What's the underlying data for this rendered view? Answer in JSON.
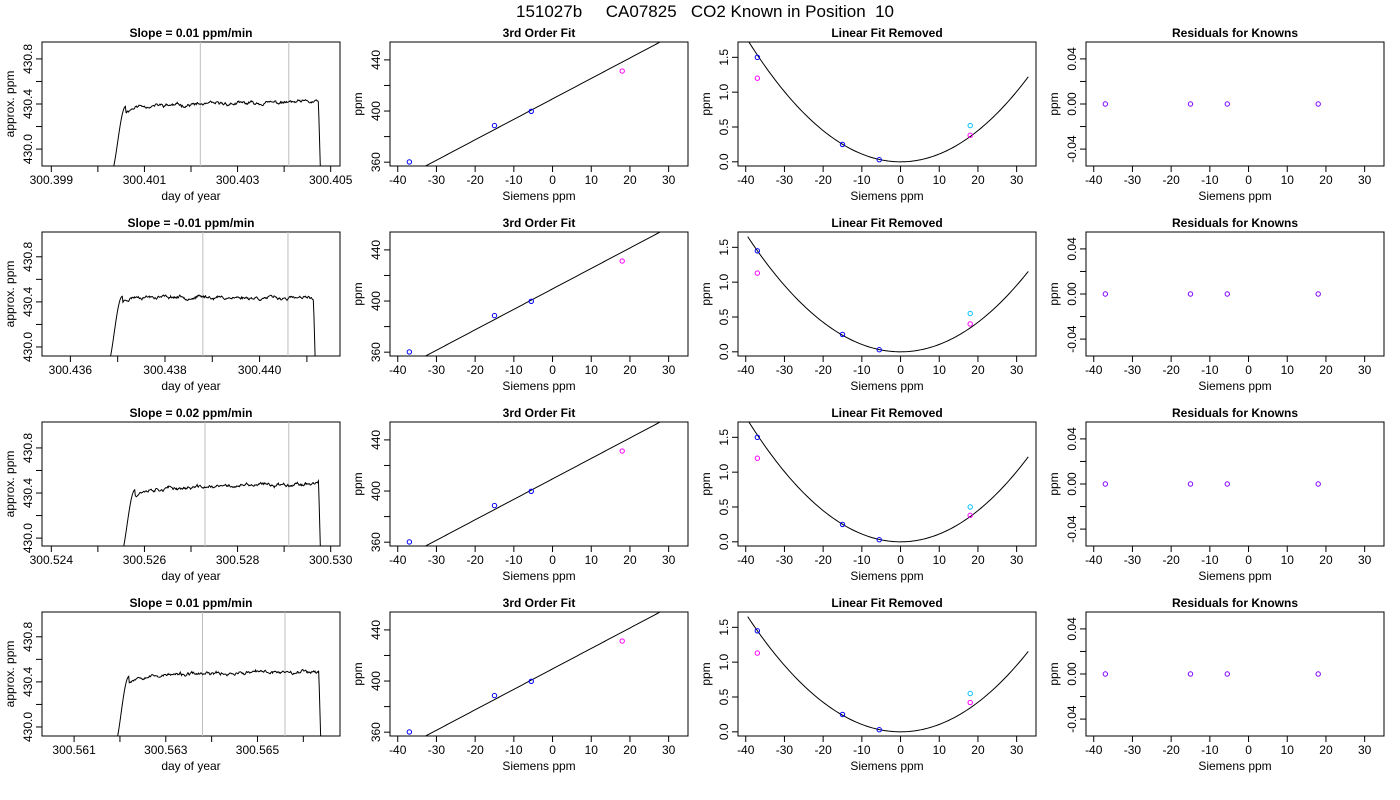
{
  "figure": {
    "title": "151027b     CA07825   CO2 Known in Position  10"
  },
  "colors": {
    "trace": "#000000",
    "frame": "#000000",
    "marker_lines": "#bebebe",
    "points_blue": "#0000ff",
    "points_magenta": "#ff00ff",
    "points_cyan": "#00bfff",
    "points_purple": "#8000ff"
  },
  "chart_data": [
    {
      "type": "line",
      "row": 0,
      "col": 0,
      "title": "Slope =  0.01  ppm/min",
      "xlabel": "day of year",
      "ylabel": "approx. ppm",
      "xlim": [
        300.3988,
        300.4052
      ],
      "ylim": [
        429.85,
        430.95
      ],
      "xticks": [
        300.399,
        300.4,
        300.401,
        300.402,
        300.403,
        300.404,
        300.405
      ],
      "xtick_labels": [
        "300.399",
        "",
        "300.401",
        "",
        "300.403",
        "",
        "300.405"
      ],
      "yticks": [
        430.0,
        430.2,
        430.4,
        430.6,
        430.8
      ],
      "ytick_labels": [
        "430.0",
        "",
        "430.4",
        "",
        "430.8"
      ],
      "vlines": [
        300.4022,
        300.4041
      ],
      "trace": {
        "start": 300.4003,
        "rise_end": 300.4006,
        "end": 300.4048,
        "base": 429.8,
        "plateau": 430.38,
        "drift": 0.04,
        "seed": 11
      }
    },
    {
      "type": "line",
      "row": 1,
      "col": 0,
      "title": "Slope =  -0.01  ppm/min",
      "xlabel": "day of year",
      "ylabel": "approx. ppm",
      "xlim": [
        300.4354,
        300.4417
      ],
      "ylim": [
        429.92,
        431.02
      ],
      "xticks": [
        300.436,
        300.437,
        300.438,
        300.439,
        300.44,
        300.441
      ],
      "xtick_labels": [
        "300.436",
        "",
        "300.438",
        "",
        "300.440",
        ""
      ],
      "yticks": [
        430.0,
        430.2,
        430.4,
        430.6,
        430.8
      ],
      "ytick_labels": [
        "430.0",
        "",
        "430.4",
        "",
        "430.8"
      ],
      "vlines": [
        300.4388,
        300.4406
      ],
      "trace": {
        "start": 300.4368,
        "rise_end": 300.4371,
        "end": 300.4412,
        "base": 429.85,
        "plateau": 430.45,
        "drift": -0.02,
        "seed": 23
      }
    },
    {
      "type": "line",
      "row": 2,
      "col": 0,
      "title": "Slope =  0.02  ppm/min",
      "xlabel": "day of year",
      "ylabel": "approx. ppm",
      "xlim": [
        300.5238,
        300.5302
      ],
      "ylim": [
        429.93,
        431.03
      ],
      "xticks": [
        300.524,
        300.525,
        300.526,
        300.527,
        300.528,
        300.529,
        300.53
      ],
      "xtick_labels": [
        "300.524",
        "",
        "300.526",
        "",
        "300.528",
        "",
        "300.530"
      ],
      "yticks": [
        430.0,
        430.2,
        430.4,
        430.6,
        430.8
      ],
      "ytick_labels": [
        "430.0",
        "",
        "430.4",
        "",
        "430.8"
      ],
      "vlines": [
        300.5273,
        300.5291
      ],
      "trace": {
        "start": 300.5255,
        "rise_end": 300.5258,
        "end": 300.5298,
        "base": 429.85,
        "plateau": 430.43,
        "drift": 0.06,
        "seed": 37
      }
    },
    {
      "type": "line",
      "row": 3,
      "col": 0,
      "title": "Slope =  0.01  ppm/min",
      "xlabel": "day of year",
      "ylabel": "approx. ppm",
      "xlim": [
        300.5603,
        300.5668
      ],
      "ylim": [
        429.92,
        431.02
      ],
      "xticks": [
        300.561,
        300.562,
        300.563,
        300.564,
        300.565,
        300.566
      ],
      "xtick_labels": [
        "300.561",
        "",
        "300.563",
        "",
        "300.565",
        ""
      ],
      "yticks": [
        430.0,
        430.2,
        430.4,
        430.6,
        430.8
      ],
      "ytick_labels": [
        "430.0",
        "",
        "430.4",
        "",
        "430.8"
      ],
      "vlines": [
        300.5638,
        300.5656
      ],
      "trace": {
        "start": 300.5619,
        "rise_end": 300.5622,
        "end": 300.5664,
        "base": 429.85,
        "plateau": 430.45,
        "drift": 0.05,
        "seed": 53
      }
    },
    {
      "type": "scatter",
      "row": 0,
      "col": 1,
      "title": "3rd Order Fit",
      "xlabel": "Siemens ppm",
      "ylabel": "ppm",
      "xlim": [
        -42,
        35
      ],
      "ylim": [
        357,
        454
      ],
      "xticks": [
        -40,
        -30,
        -20,
        -10,
        0,
        10,
        20,
        30
      ],
      "xtick_labels": [
        "-40",
        "-30",
        "-20",
        "-10",
        "0",
        "10",
        "20",
        "30"
      ],
      "yticks": [
        360,
        380,
        400,
        420,
        440
      ],
      "ytick_labels": [
        "360",
        "",
        "400",
        "",
        "440"
      ],
      "line": {
        "kind": "linear",
        "slope": 1.6,
        "intercept": 409.5,
        "x0": -41,
        "x1": 33
      },
      "points": [
        {
          "x": -37,
          "y": 360.2,
          "color": "blue"
        },
        {
          "x": -15,
          "y": 388.6,
          "color": "blue"
        },
        {
          "x": -5.5,
          "y": 399.8,
          "color": "blue"
        },
        {
          "x": 18,
          "y": 431.3,
          "color": "magenta"
        }
      ]
    },
    {
      "type": "scatter",
      "row": 1,
      "col": 1,
      "title": "3rd Order Fit",
      "xlabel": "Siemens ppm",
      "ylabel": "ppm",
      "xlim": [
        -42,
        35
      ],
      "ylim": [
        357,
        454
      ],
      "xticks": [
        -40,
        -30,
        -20,
        -10,
        0,
        10,
        20,
        30
      ],
      "xtick_labels": [
        "-40",
        "-30",
        "-20",
        "-10",
        "0",
        "10",
        "20",
        "30"
      ],
      "yticks": [
        360,
        380,
        400,
        420,
        440
      ],
      "ytick_labels": [
        "360",
        "",
        "400",
        "",
        "440"
      ],
      "line": {
        "kind": "linear",
        "slope": 1.6,
        "intercept": 409.5,
        "x0": -41,
        "x1": 33
      },
      "points": [
        {
          "x": -37,
          "y": 360.2,
          "color": "blue"
        },
        {
          "x": -15,
          "y": 388.6,
          "color": "blue"
        },
        {
          "x": -5.5,
          "y": 399.8,
          "color": "blue"
        },
        {
          "x": 18,
          "y": 431.3,
          "color": "magenta"
        }
      ]
    },
    {
      "type": "scatter",
      "row": 2,
      "col": 1,
      "title": "3rd Order Fit",
      "xlabel": "Siemens ppm",
      "ylabel": "ppm",
      "xlim": [
        -42,
        35
      ],
      "ylim": [
        357,
        454
      ],
      "xticks": [
        -40,
        -30,
        -20,
        -10,
        0,
        10,
        20,
        30
      ],
      "xtick_labels": [
        "-40",
        "-30",
        "-20",
        "-10",
        "0",
        "10",
        "20",
        "30"
      ],
      "yticks": [
        360,
        380,
        400,
        420,
        440
      ],
      "ytick_labels": [
        "360",
        "",
        "400",
        "",
        "440"
      ],
      "line": {
        "kind": "linear",
        "slope": 1.6,
        "intercept": 409.5,
        "x0": -41,
        "x1": 33
      },
      "points": [
        {
          "x": -37,
          "y": 360.2,
          "color": "blue"
        },
        {
          "x": -15,
          "y": 388.6,
          "color": "blue"
        },
        {
          "x": -5.5,
          "y": 399.8,
          "color": "blue"
        },
        {
          "x": 18,
          "y": 431.3,
          "color": "magenta"
        }
      ]
    },
    {
      "type": "scatter",
      "row": 3,
      "col": 1,
      "title": "3rd Order Fit",
      "xlabel": "Siemens ppm",
      "ylabel": "ppm",
      "xlim": [
        -42,
        35
      ],
      "ylim": [
        357,
        454
      ],
      "xticks": [
        -40,
        -30,
        -20,
        -10,
        0,
        10,
        20,
        30
      ],
      "xtick_labels": [
        "-40",
        "-30",
        "-20",
        "-10",
        "0",
        "10",
        "20",
        "30"
      ],
      "yticks": [
        360,
        380,
        400,
        420,
        440
      ],
      "ytick_labels": [
        "360",
        "",
        "400",
        "",
        "440"
      ],
      "line": {
        "kind": "linear",
        "slope": 1.6,
        "intercept": 409.5,
        "x0": -41,
        "x1": 33
      },
      "points": [
        {
          "x": -37,
          "y": 360.2,
          "color": "blue"
        },
        {
          "x": -15,
          "y": 388.6,
          "color": "blue"
        },
        {
          "x": -5.5,
          "y": 399.8,
          "color": "blue"
        },
        {
          "x": 18,
          "y": 431.3,
          "color": "magenta"
        }
      ]
    },
    {
      "type": "scatter",
      "row": 0,
      "col": 2,
      "title": "Linear Fit Removed",
      "xlabel": "Siemens ppm",
      "ylabel": "ppm",
      "xlim": [
        -42,
        35
      ],
      "ylim": [
        -0.06,
        1.72
      ],
      "xticks": [
        -40,
        -30,
        -20,
        -10,
        0,
        10,
        20,
        30
      ],
      "xtick_labels": [
        "-40",
        "-30",
        "-20",
        "-10",
        "0",
        "10",
        "20",
        "30"
      ],
      "yticks": [
        0.0,
        0.5,
        1.0,
        1.5
      ],
      "ytick_labels": [
        "0.0",
        "0.5",
        "1.0",
        "1.5"
      ],
      "line": {
        "kind": "quadratic",
        "a": 0.00112,
        "b": 0,
        "c": 0,
        "x0": -39.5,
        "x1": 33
      },
      "points": [
        {
          "x": -37,
          "y": 1.5,
          "color": "blue"
        },
        {
          "x": -37,
          "y": 1.2,
          "color": "magenta"
        },
        {
          "x": -15,
          "y": 0.25,
          "color": "blue"
        },
        {
          "x": -5.5,
          "y": 0.03,
          "color": "blue"
        },
        {
          "x": 18,
          "y": 0.52,
          "color": "cyan"
        },
        {
          "x": 18,
          "y": 0.38,
          "color": "magenta"
        }
      ]
    },
    {
      "type": "scatter",
      "row": 1,
      "col": 2,
      "title": "Linear Fit Removed",
      "xlabel": "Siemens ppm",
      "ylabel": "ppm",
      "xlim": [
        -42,
        35
      ],
      "ylim": [
        -0.06,
        1.72
      ],
      "xticks": [
        -40,
        -30,
        -20,
        -10,
        0,
        10,
        20,
        30
      ],
      "xtick_labels": [
        "-40",
        "-30",
        "-20",
        "-10",
        "0",
        "10",
        "20",
        "30"
      ],
      "yticks": [
        0.0,
        0.5,
        1.0,
        1.5
      ],
      "ytick_labels": [
        "0.0",
        "0.5",
        "1.0",
        "1.5"
      ],
      "line": {
        "kind": "quadratic",
        "a": 0.00106,
        "b": 0,
        "c": 0,
        "x0": -39.5,
        "x1": 33
      },
      "points": [
        {
          "x": -37,
          "y": 1.45,
          "color": "blue"
        },
        {
          "x": -37,
          "y": 1.13,
          "color": "magenta"
        },
        {
          "x": -15,
          "y": 0.25,
          "color": "blue"
        },
        {
          "x": -5.5,
          "y": 0.03,
          "color": "blue"
        },
        {
          "x": 18,
          "y": 0.55,
          "color": "cyan"
        },
        {
          "x": 18,
          "y": 0.4,
          "color": "magenta"
        }
      ]
    },
    {
      "type": "scatter",
      "row": 2,
      "col": 2,
      "title": "Linear Fit Removed",
      "xlabel": "Siemens ppm",
      "ylabel": "ppm",
      "xlim": [
        -42,
        35
      ],
      "ylim": [
        -0.06,
        1.72
      ],
      "xticks": [
        -40,
        -30,
        -20,
        -10,
        0,
        10,
        20,
        30
      ],
      "xtick_labels": [
        "-40",
        "-30",
        "-20",
        "-10",
        "0",
        "10",
        "20",
        "30"
      ],
      "yticks": [
        0.0,
        0.5,
        1.0,
        1.5
      ],
      "ytick_labels": [
        "0.0",
        "0.5",
        "1.0",
        "1.5"
      ],
      "line": {
        "kind": "quadratic",
        "a": 0.00112,
        "b": 0,
        "c": 0,
        "x0": -39.5,
        "x1": 33
      },
      "points": [
        {
          "x": -37,
          "y": 1.5,
          "color": "blue"
        },
        {
          "x": -37,
          "y": 1.2,
          "color": "magenta"
        },
        {
          "x": -15,
          "y": 0.25,
          "color": "blue"
        },
        {
          "x": -5.5,
          "y": 0.03,
          "color": "blue"
        },
        {
          "x": 18,
          "y": 0.5,
          "color": "cyan"
        },
        {
          "x": 18,
          "y": 0.38,
          "color": "magenta"
        }
      ]
    },
    {
      "type": "scatter",
      "row": 3,
      "col": 2,
      "title": "Linear Fit Removed",
      "xlabel": "Siemens ppm",
      "ylabel": "ppm",
      "xlim": [
        -42,
        35
      ],
      "ylim": [
        -0.06,
        1.72
      ],
      "xticks": [
        -40,
        -30,
        -20,
        -10,
        0,
        10,
        20,
        30
      ],
      "xtick_labels": [
        "-40",
        "-30",
        "-20",
        "-10",
        "0",
        "10",
        "20",
        "30"
      ],
      "yticks": [
        0.0,
        0.5,
        1.0,
        1.5
      ],
      "ytick_labels": [
        "0.0",
        "0.5",
        "1.0",
        "1.5"
      ],
      "line": {
        "kind": "quadratic",
        "a": 0.00106,
        "b": 0,
        "c": 0,
        "x0": -39.5,
        "x1": 33
      },
      "points": [
        {
          "x": -37,
          "y": 1.45,
          "color": "blue"
        },
        {
          "x": -37,
          "y": 1.13,
          "color": "magenta"
        },
        {
          "x": -15,
          "y": 0.25,
          "color": "blue"
        },
        {
          "x": -5.5,
          "y": 0.03,
          "color": "blue"
        },
        {
          "x": 18,
          "y": 0.55,
          "color": "cyan"
        },
        {
          "x": 18,
          "y": 0.42,
          "color": "magenta"
        }
      ]
    },
    {
      "type": "scatter",
      "row": 0,
      "col": 3,
      "title": "Residuals for Knowns",
      "xlabel": "Siemens ppm",
      "ylabel": "ppm",
      "xlim": [
        -42,
        35
      ],
      "ylim": [
        -0.055,
        0.055
      ],
      "xticks": [
        -40,
        -30,
        -20,
        -10,
        0,
        10,
        20,
        30
      ],
      "xtick_labels": [
        "-40",
        "-30",
        "-20",
        "-10",
        "0",
        "10",
        "20",
        "30"
      ],
      "yticks": [
        -0.04,
        -0.02,
        0.0,
        0.02,
        0.04
      ],
      "ytick_labels": [
        "-0.04",
        "",
        "0.00",
        "",
        "0.04"
      ],
      "points": [
        {
          "x": -37,
          "y": 0,
          "color": "purple"
        },
        {
          "x": -15,
          "y": 0,
          "color": "purple"
        },
        {
          "x": -5.5,
          "y": 0,
          "color": "purple"
        },
        {
          "x": 18,
          "y": 0,
          "color": "purple"
        }
      ]
    },
    {
      "type": "scatter",
      "row": 1,
      "col": 3,
      "title": "Residuals for Knowns",
      "xlabel": "Siemens ppm",
      "ylabel": "ppm",
      "xlim": [
        -42,
        35
      ],
      "ylim": [
        -0.055,
        0.055
      ],
      "xticks": [
        -40,
        -30,
        -20,
        -10,
        0,
        10,
        20,
        30
      ],
      "xtick_labels": [
        "-40",
        "-30",
        "-20",
        "-10",
        "0",
        "10",
        "20",
        "30"
      ],
      "yticks": [
        -0.04,
        -0.02,
        0.0,
        0.02,
        0.04
      ],
      "ytick_labels": [
        "-0.04",
        "",
        "0.00",
        "",
        "0.04"
      ],
      "points": [
        {
          "x": -37,
          "y": 0,
          "color": "purple"
        },
        {
          "x": -15,
          "y": 0,
          "color": "purple"
        },
        {
          "x": -5.5,
          "y": 0,
          "color": "purple"
        },
        {
          "x": 18,
          "y": 0,
          "color": "purple"
        }
      ]
    },
    {
      "type": "scatter",
      "row": 2,
      "col": 3,
      "title": "Residuals for Knowns",
      "xlabel": "Siemens ppm",
      "ylabel": "ppm",
      "xlim": [
        -42,
        35
      ],
      "ylim": [
        -0.055,
        0.055
      ],
      "xticks": [
        -40,
        -30,
        -20,
        -10,
        0,
        10,
        20,
        30
      ],
      "xtick_labels": [
        "-40",
        "-30",
        "-20",
        "-10",
        "0",
        "10",
        "20",
        "30"
      ],
      "yticks": [
        -0.04,
        -0.02,
        0.0,
        0.02,
        0.04
      ],
      "ytick_labels": [
        "-0.04",
        "",
        "0.00",
        "",
        "0.04"
      ],
      "points": [
        {
          "x": -37,
          "y": 0,
          "color": "purple"
        },
        {
          "x": -15,
          "y": 0,
          "color": "purple"
        },
        {
          "x": -5.5,
          "y": 0,
          "color": "purple"
        },
        {
          "x": 18,
          "y": 0,
          "color": "purple"
        }
      ]
    },
    {
      "type": "scatter",
      "row": 3,
      "col": 3,
      "title": "Residuals for Knowns",
      "xlabel": "Siemens ppm",
      "ylabel": "ppm",
      "xlim": [
        -42,
        35
      ],
      "ylim": [
        -0.055,
        0.055
      ],
      "xticks": [
        -40,
        -30,
        -20,
        -10,
        0,
        10,
        20,
        30
      ],
      "xtick_labels": [
        "-40",
        "-30",
        "-20",
        "-10",
        "0",
        "10",
        "20",
        "30"
      ],
      "yticks": [
        -0.04,
        -0.02,
        0.0,
        0.02,
        0.04
      ],
      "ytick_labels": [
        "-0.04",
        "",
        "0.00",
        "",
        "0.04"
      ],
      "points": [
        {
          "x": -37,
          "y": 0,
          "color": "purple"
        },
        {
          "x": -15,
          "y": 0,
          "color": "purple"
        },
        {
          "x": -5.5,
          "y": 0,
          "color": "purple"
        },
        {
          "x": 18,
          "y": 0,
          "color": "purple"
        }
      ]
    }
  ]
}
